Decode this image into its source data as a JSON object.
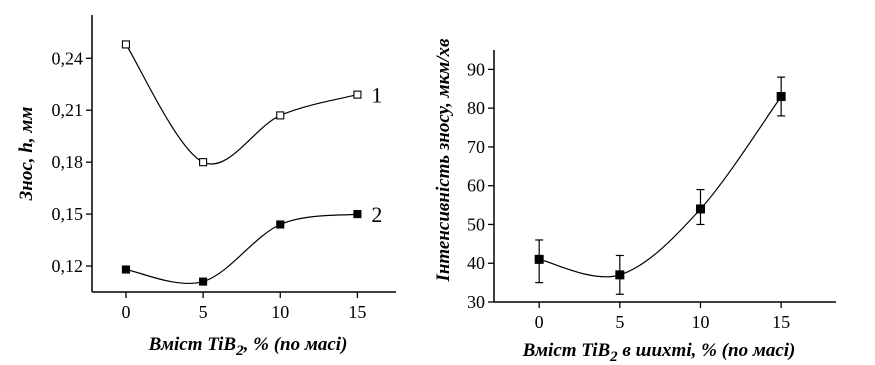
{
  "chart_data": [
    {
      "type": "line",
      "x": [
        0,
        5,
        10,
        15
      ],
      "series": [
        {
          "name": "1",
          "values": [
            0.248,
            0.18,
            0.207,
            0.219
          ],
          "marker": "open-square"
        },
        {
          "name": "2",
          "values": [
            0.118,
            0.111,
            0.144,
            0.15
          ],
          "marker": "filled-square"
        }
      ],
      "ylabel": "Знос, h, мм",
      "ylabel_prefix": "Знос, ",
      "ylabel_var": "h",
      "ylabel_suffix": ", мм",
      "xlabel_main": "Вміст TiB",
      "xlabel_sub": "2",
      "xlabel_tail": ", % (по масі)",
      "xticks": [
        "0",
        "5",
        "10",
        "15"
      ],
      "yticks": [
        "0,12",
        "0,15",
        "0,18",
        "0,21",
        "0,24"
      ],
      "ylim": [
        0.105,
        0.265
      ],
      "xlim": [
        -2.2,
        17.5
      ],
      "grid": false
    },
    {
      "type": "line",
      "x": [
        0,
        5,
        10,
        15
      ],
      "series": [
        {
          "values": [
            41,
            37,
            54,
            83
          ],
          "err_low": [
            35,
            32,
            50,
            78
          ],
          "err_high": [
            46,
            42,
            59,
            88
          ]
        }
      ],
      "ylabel": "Інтенсивність зносу, мкм/хв",
      "xlabel_main": "Вміст TiB",
      "xlabel_sub": "2",
      "xlabel_tail": " в шихті, % (по масі)",
      "xticks": [
        "0",
        "5",
        "10",
        "15"
      ],
      "yticks": [
        "30",
        "40",
        "50",
        "60",
        "70",
        "80",
        "90"
      ],
      "ylim": [
        30,
        95
      ],
      "xlim": [
        -2.8,
        18.4
      ],
      "grid": false
    }
  ]
}
